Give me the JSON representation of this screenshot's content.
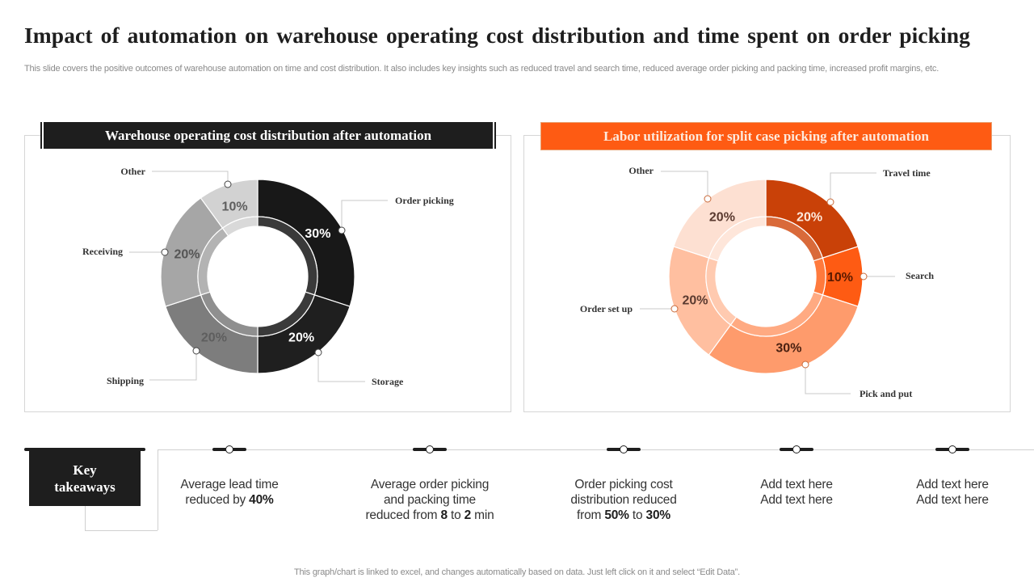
{
  "title": "Impact of automation on warehouse operating cost distribution and time spent on order picking",
  "subtitle": "This slide covers the positive outcomes of warehouse automation on time and cost distribution. It also includes key insights such as reduced travel and search time, reduced average order picking and packing time,  increased profit margins, etc.",
  "chart_data": [
    {
      "type": "pie",
      "variant": "donut",
      "title": "Warehouse operating cost distribution after automation",
      "categories": [
        "Order picking",
        "Storage",
        "Shipping",
        "Receiving",
        "Other"
      ],
      "values": [
        30,
        20,
        20,
        20,
        10
      ],
      "labels": [
        "30%",
        "20%",
        "20%",
        "20%",
        "10%"
      ],
      "colors": [
        "#181818",
        "#1f1f1f",
        "#7d7d7d",
        "#a6a6a6",
        "#d2d2d2"
      ],
      "inner_colors": [
        "#3a3a3a",
        "#3a3a3a",
        "#8f8f8f",
        "#b3b3b3",
        "#d9d9d9"
      ],
      "label_colors": [
        "#ffffff",
        "#ffffff",
        "#5e5e5e",
        "#555555",
        "#5e5e5e"
      ],
      "unit": "%"
    },
    {
      "type": "pie",
      "variant": "donut",
      "title": "Labor utilization for split case picking after automation",
      "categories": [
        "Travel time",
        "Search",
        "Pick and put",
        "Order set up",
        "Other"
      ],
      "values": [
        20,
        10,
        30,
        20,
        20
      ],
      "labels": [
        "20%",
        "10%",
        "30%",
        "20%",
        "20%"
      ],
      "colors": [
        "#c94108",
        "#fe5b13",
        "#fe9b6c",
        "#ffbfa0",
        "#fde0d2"
      ],
      "inner_colors": [
        "#d96a3a",
        "#ff7a3d",
        "#ffaa82",
        "#ffcab0",
        "#fee6da"
      ],
      "label_colors": [
        "#fde9dc",
        "#5a1a00",
        "#4a2010",
        "#5a3a30",
        "#5a3a30"
      ],
      "unit": "%"
    }
  ],
  "takeaways": {
    "heading_line1": "Key",
    "heading_line2": "takeaways",
    "items": [
      {
        "lines": [
          [
            "Average lead time",
            ""
          ],
          [
            "reduced by ",
            "40%"
          ]
        ]
      },
      {
        "lines": [
          [
            "Average order picking",
            ""
          ],
          [
            "and packing time",
            ""
          ],
          [
            "reduced from ",
            "8",
            " to ",
            "2",
            " min"
          ]
        ]
      },
      {
        "lines": [
          [
            "Order picking cost",
            ""
          ],
          [
            "distribution reduced",
            ""
          ],
          [
            "from ",
            "50%",
            " to ",
            "30%"
          ]
        ]
      },
      {
        "lines": [
          [
            "Add text  here",
            ""
          ],
          [
            "Add text here",
            ""
          ]
        ]
      },
      {
        "lines": [
          [
            "Add text  here",
            ""
          ],
          [
            "Add text here",
            ""
          ]
        ]
      }
    ]
  },
  "footer": "This graph/chart is linked to excel,  and changes automatically based on data. Just left click on it and select “Edit Data”."
}
